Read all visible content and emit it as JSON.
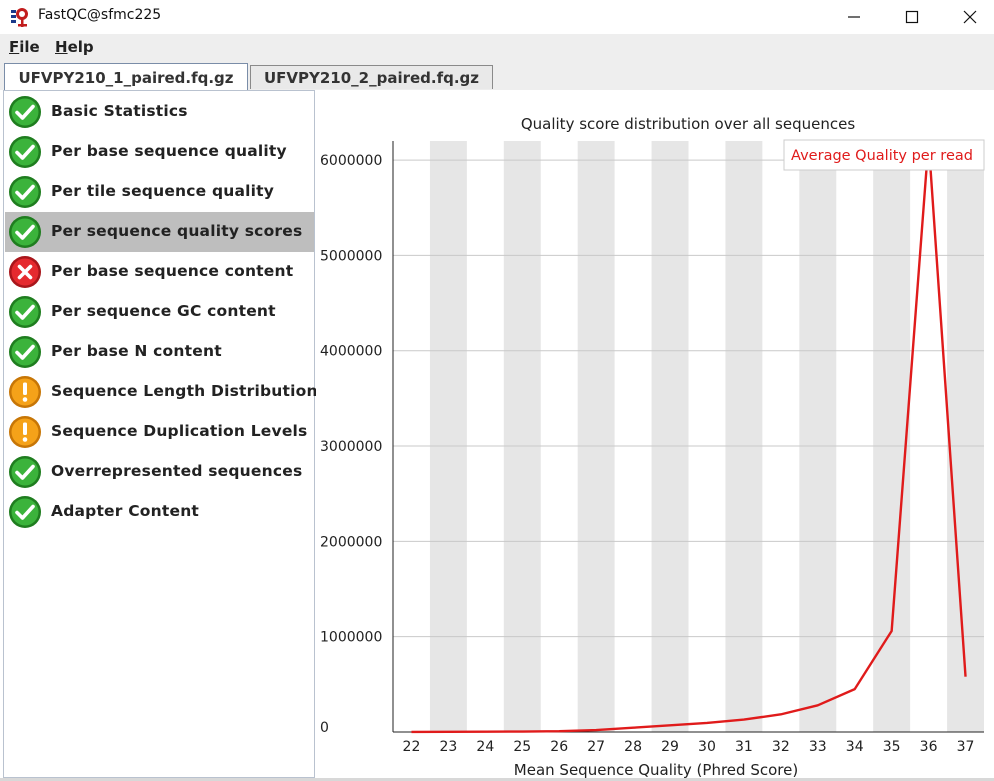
{
  "window": {
    "title": "FastQC@sfmc225",
    "icon": "fastqc-app-icon"
  },
  "menu": {
    "file": {
      "underline": "F",
      "rest": "ile"
    },
    "help": {
      "underline": "H",
      "rest": "elp"
    }
  },
  "tabs": [
    {
      "label": "UFVPY210_1_paired.fq.gz",
      "active": true
    },
    {
      "label": "UFVPY210_2_paired.fq.gz",
      "active": false
    }
  ],
  "modules": [
    {
      "label": "Basic Statistics",
      "status": "pass"
    },
    {
      "label": "Per base sequence quality",
      "status": "pass"
    },
    {
      "label": "Per tile sequence quality",
      "status": "pass"
    },
    {
      "label": "Per sequence quality scores",
      "status": "pass",
      "selected": true
    },
    {
      "label": "Per base sequence content",
      "status": "fail"
    },
    {
      "label": "Per sequence GC content",
      "status": "pass"
    },
    {
      "label": "Per base N content",
      "status": "pass"
    },
    {
      "label": "Sequence Length Distribution",
      "status": "warn"
    },
    {
      "label": "Sequence Duplication Levels",
      "status": "warn"
    },
    {
      "label": "Overrepresented sequences",
      "status": "pass"
    },
    {
      "label": "Adapter Content",
      "status": "pass"
    }
  ],
  "colors": {
    "pass": "#2e9e2e",
    "fail": "#e0262b",
    "warn": "#f39c12",
    "line": "#e01b1b",
    "band": "#e6e6e6",
    "grid": "#c9c9c9"
  },
  "chart_data": {
    "type": "line",
    "title": "Quality score distribution over all sequences",
    "xlabel": "Mean Sequence Quality (Phred Score)",
    "ylabel": "",
    "legend": "Average Quality per read",
    "legend_position": "top-right",
    "x": [
      22,
      23,
      24,
      25,
      26,
      27,
      28,
      29,
      30,
      31,
      32,
      33,
      34,
      35,
      36,
      37
    ],
    "ylim": [
      0,
      6200000
    ],
    "yticks": [
      0,
      1000000,
      2000000,
      3000000,
      4000000,
      5000000,
      6000000
    ],
    "ytick_labels": [
      "0",
      "1000000",
      "2000000",
      "3000000",
      "4000000",
      "5000000",
      "6000000"
    ],
    "series": [
      {
        "name": "Average Quality per read",
        "values": [
          1000,
          2000,
          3000,
          5000,
          8000,
          20000,
          45000,
          70000,
          95000,
          130000,
          185000,
          280000,
          450000,
          1060000,
          6200000,
          580000
        ]
      }
    ]
  }
}
